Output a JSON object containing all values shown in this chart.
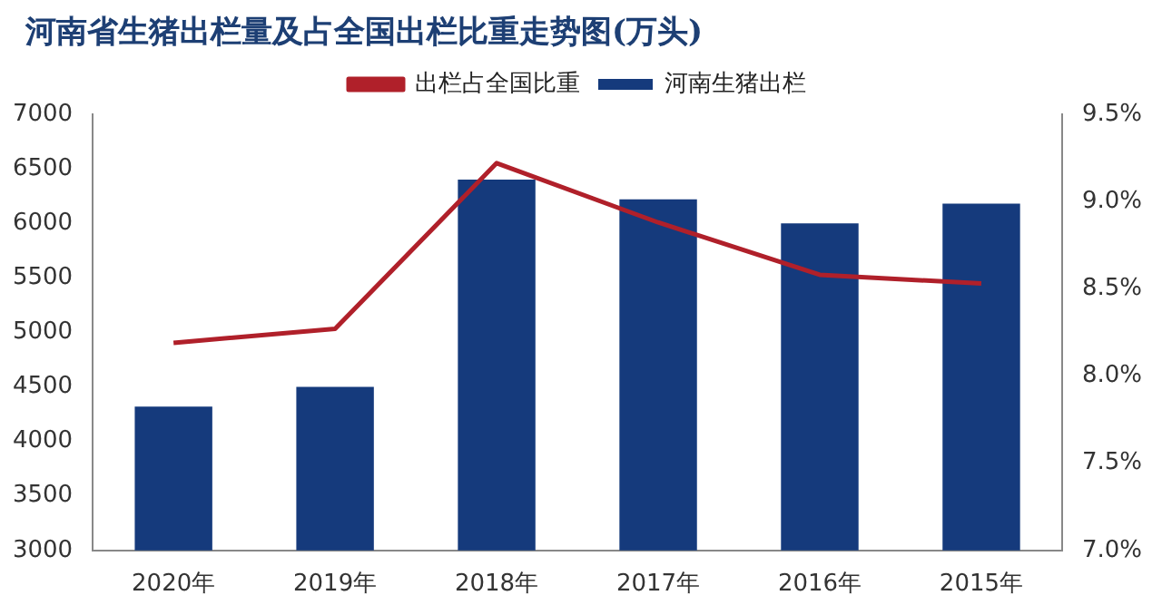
{
  "chart_data": {
    "type": "bar",
    "title": "河南省生猪出栏量及占全国出栏比重走势图(万头)",
    "categories": [
      "2020年",
      "2019年",
      "2018年",
      "2017年",
      "2016年",
      "2015年"
    ],
    "series": [
      {
        "name": "河南生猪出栏",
        "color": "#153a7c",
        "values": [
          4320,
          4500,
          6400,
          6220,
          6000,
          6180
        ]
      },
      {
        "name": "出栏占全国比重",
        "type": "line",
        "axis": "y2",
        "color": "#b0202a",
        "values": [
          8.19,
          8.27,
          9.22,
          8.88,
          8.58,
          8.53
        ]
      }
    ],
    "ylim": [
      3000,
      7000
    ],
    "yticks": [
      3000,
      3500,
      4000,
      4500,
      5000,
      5500,
      6000,
      6500,
      7000
    ],
    "y2lim": [
      7.0,
      9.5
    ],
    "y2ticks": [
      {
        "value": 7.0,
        "label": "7.0%"
      },
      {
        "value": 7.5,
        "label": "7.5%"
      },
      {
        "value": 8.0,
        "label": "8.0%"
      },
      {
        "value": 8.5,
        "label": "8.5%"
      },
      {
        "value": 9.0,
        "label": "9.0%"
      },
      {
        "value": 9.5,
        "label": "9.5%"
      }
    ],
    "grid": false,
    "legend": "top",
    "marker": "none"
  }
}
